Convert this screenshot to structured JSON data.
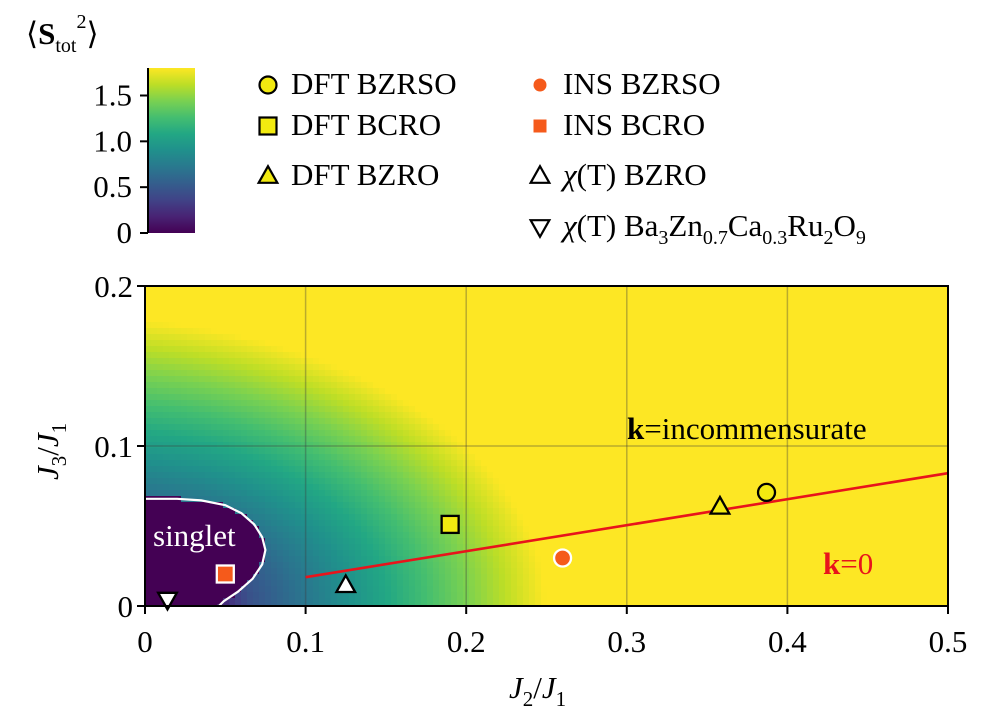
{
  "chart_data": {
    "type": "heatmap",
    "title": "",
    "xlabel": {
      "main": "J",
      "sub": "2",
      "sep": "/",
      "main2": "J",
      "sub2": "1"
    },
    "ylabel": {
      "main": "J",
      "sub": "3",
      "sep": "/",
      "main2": "J",
      "sub2": "1"
    },
    "xlim": [
      0,
      0.5
    ],
    "ylim": [
      0,
      0.2
    ],
    "x_ticks": [
      0,
      0.1,
      0.2,
      0.3,
      0.4,
      0.5
    ],
    "x_tick_labels": [
      "0",
      "0.1",
      "0.2",
      "0.3",
      "0.4",
      "0.5"
    ],
    "y_ticks": [
      0,
      0.1,
      0.2
    ],
    "y_tick_labels": [
      "0",
      "0.1",
      "0.2"
    ],
    "grid": true,
    "colormap": "viridis",
    "colorbar": {
      "label": {
        "open": "⟨",
        "bold": "S",
        "sub": "tot",
        "sup": "2",
        "close": "⟩"
      },
      "range": [
        0,
        1.8
      ],
      "ticks": [
        0,
        0.5,
        1.0,
        1.5
      ],
      "tick_labels": [
        "0",
        "0.5",
        "1.0",
        "1.5"
      ]
    },
    "field": {
      "description_free_params": true,
      "center": [
        0.0,
        0.0
      ],
      "slope_x": 3.4,
      "slope_y": 6.5,
      "singlet_plateau": 0.05
    },
    "singlet_boundary": [
      [
        0.0,
        0.067
      ],
      [
        0.02,
        0.067
      ],
      [
        0.035,
        0.066
      ],
      [
        0.05,
        0.063
      ],
      [
        0.06,
        0.058
      ],
      [
        0.068,
        0.051
      ],
      [
        0.073,
        0.043
      ],
      [
        0.075,
        0.035
      ],
      [
        0.073,
        0.026
      ],
      [
        0.067,
        0.017
      ],
      [
        0.058,
        0.009
      ],
      [
        0.049,
        0.003
      ],
      [
        0.046,
        0.0
      ]
    ],
    "phase_line": {
      "x": [
        0.1,
        0.5
      ],
      "y": [
        0.018,
        0.083
      ],
      "color": "#e8141b"
    },
    "regions": {
      "singlet": "singlet",
      "incommensurate_bold": "k",
      "incommensurate_rest": "=incommensurate",
      "k0_bold": "k",
      "k0_rest": "=0"
    },
    "series": [
      {
        "name": "DFT BZRSO",
        "marker": "circle",
        "fill": "#f2ea10",
        "edge": "#000000",
        "x": [
          0.387
        ],
        "y": [
          0.071
        ]
      },
      {
        "name": "DFT BCRO",
        "marker": "square",
        "fill": "#f2ea10",
        "edge": "#000000",
        "x": [
          0.19
        ],
        "y": [
          0.051
        ]
      },
      {
        "name": "DFT BZRO",
        "marker": "triangle-up",
        "fill": "#f2ea10",
        "edge": "#000000",
        "x": [
          0.358
        ],
        "y": [
          0.062
        ]
      },
      {
        "name": "INS BZRSO",
        "marker": "circle",
        "fill": "#f55a1b",
        "edge": "#ffffff",
        "x": [
          0.26
        ],
        "y": [
          0.03
        ]
      },
      {
        "name": "INS BCRO",
        "marker": "square",
        "fill": "#f55a1b",
        "edge": "#ffffff",
        "x": [
          0.05
        ],
        "y": [
          0.02
        ]
      },
      {
        "name": "χ(T) BZRO",
        "marker": "triangle-up",
        "fill": "#ffffff",
        "edge": "#000000",
        "x": [
          0.125
        ],
        "y": [
          0.013
        ]
      },
      {
        "name": "χ(T) Ba3Zn0.7Ca0.3Ru2O9",
        "marker": "triangle-down",
        "fill": "#ffffff",
        "edge": "#000000",
        "x": [
          0.014
        ],
        "y": [
          0.004
        ]
      }
    ],
    "legend": [
      {
        "marker": "circle",
        "fill": "#f2ea10",
        "edge": "#000000",
        "parts": [
          "DFT BZRSO"
        ]
      },
      {
        "marker": "square",
        "fill": "#f2ea10",
        "edge": "#000000",
        "parts": [
          "DFT BCRO"
        ]
      },
      {
        "marker": "triangle-up",
        "fill": "#f2ea10",
        "edge": "#000000",
        "parts": [
          "DFT BZRO"
        ]
      },
      {
        "marker": "circle",
        "fill": "#f55a1b",
        "edge": "none",
        "parts": [
          "INS BZRSO"
        ]
      },
      {
        "marker": "square",
        "fill": "#f55a1b",
        "edge": "none",
        "parts": [
          "INS BCRO"
        ]
      },
      {
        "marker": "triangle-up",
        "fill": "none",
        "edge": "#000000",
        "chi": "χ",
        "parts": [
          "(T) BZRO"
        ]
      },
      {
        "marker": "triangle-down",
        "fill": "none",
        "edge": "#000000",
        "chi": "χ",
        "formula": [
          [
            "(T) Ba",
            ""
          ],
          [
            "3",
            "sub"
          ],
          [
            "Zn",
            ""
          ],
          [
            "0.7",
            "sub"
          ],
          [
            "Ca",
            ""
          ],
          [
            "0.3",
            "sub"
          ],
          [
            "Ru",
            ""
          ],
          [
            "2",
            "sub"
          ],
          [
            "O",
            ""
          ],
          [
            "9",
            "sub"
          ]
        ]
      }
    ],
    "legend_placement": "top"
  }
}
